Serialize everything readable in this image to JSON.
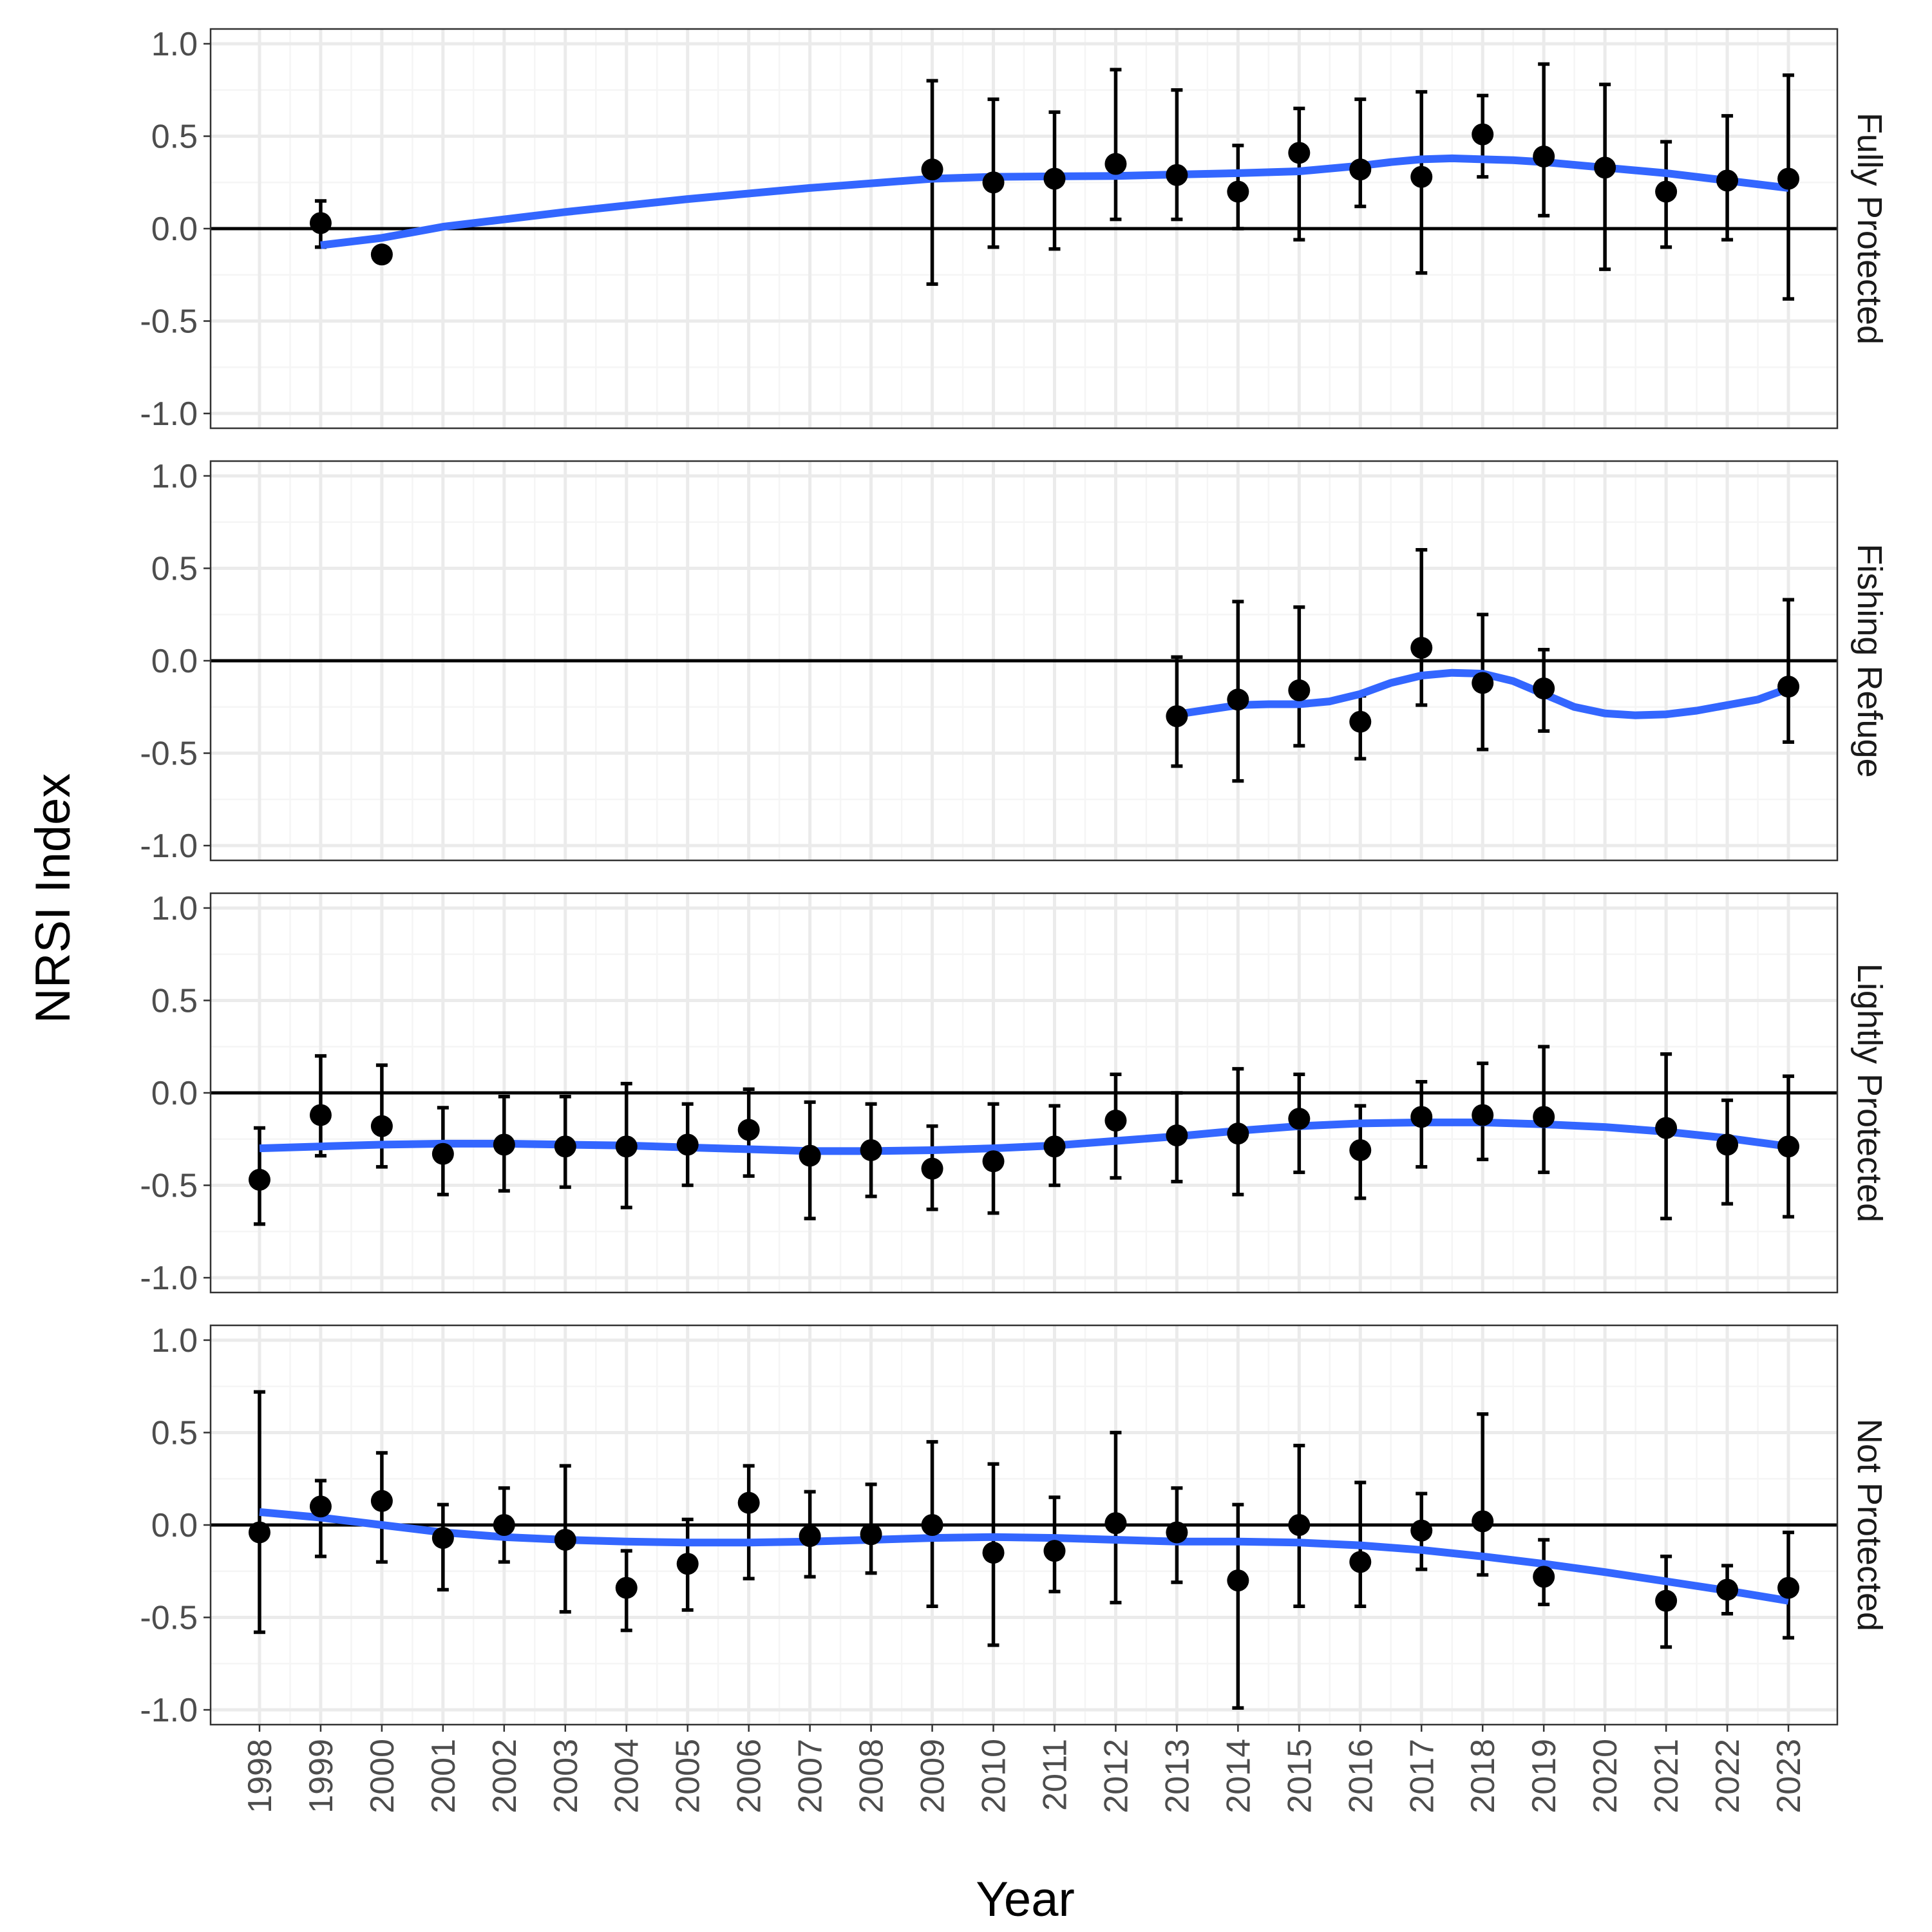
{
  "chart_data": {
    "type": "scatter",
    "xlabel": "Year",
    "ylabel": "NRSI Index",
    "ylim": [
      -1.08,
      1.08
    ],
    "y_ticks": [
      "-1.0",
      "-0.5",
      "0.0",
      "0.5",
      "1.0"
    ],
    "y_tick_values": [
      -1.0,
      -0.5,
      0.0,
      0.5,
      1.0
    ],
    "x_ticks": [
      "1998",
      "1999",
      "2000",
      "2001",
      "2002",
      "2003",
      "2004",
      "2005",
      "2006",
      "2007",
      "2008",
      "2009",
      "2010",
      "2011",
      "2012",
      "2013",
      "2014",
      "2015",
      "2016",
      "2017",
      "2018",
      "2019",
      "2020",
      "2021",
      "2022",
      "2023"
    ],
    "grid": true,
    "reference_line": 0,
    "colors": {
      "points": "#000000",
      "smooth": "#3366FF",
      "grid_major": "#EBEBEB",
      "grid_minor": "#F5F5F5",
      "panel_border": "#333333"
    },
    "panels": [
      {
        "label": "Fully Protected",
        "points": [
          {
            "x": 1999,
            "y": 0.03,
            "lo": -0.1,
            "hi": 0.15
          },
          {
            "x": 2000,
            "y": -0.14
          },
          {
            "x": 2009,
            "y": 0.32,
            "lo": -0.3,
            "hi": 0.8
          },
          {
            "x": 2010,
            "y": 0.25,
            "lo": -0.1,
            "hi": 0.7
          },
          {
            "x": 2011,
            "y": 0.27,
            "lo": -0.11,
            "hi": 0.63
          },
          {
            "x": 2012,
            "y": 0.35,
            "lo": 0.05,
            "hi": 0.86
          },
          {
            "x": 2013,
            "y": 0.29,
            "lo": 0.05,
            "hi": 0.75
          },
          {
            "x": 2014,
            "y": 0.2,
            "lo": 0.0,
            "hi": 0.45
          },
          {
            "x": 2015,
            "y": 0.41,
            "lo": -0.06,
            "hi": 0.65
          },
          {
            "x": 2016,
            "y": 0.32,
            "lo": 0.12,
            "hi": 0.7
          },
          {
            "x": 2017,
            "y": 0.28,
            "lo": -0.24,
            "hi": 0.74
          },
          {
            "x": 2018,
            "y": 0.51,
            "lo": 0.28,
            "hi": 0.72
          },
          {
            "x": 2019,
            "y": 0.39,
            "lo": 0.07,
            "hi": 0.89
          },
          {
            "x": 2020,
            "y": 0.33,
            "lo": -0.22,
            "hi": 0.78
          },
          {
            "x": 2021,
            "y": 0.2,
            "lo": -0.1,
            "hi": 0.47
          },
          {
            "x": 2022,
            "y": 0.26,
            "lo": -0.06,
            "hi": 0.61
          },
          {
            "x": 2023,
            "y": 0.27,
            "lo": -0.38,
            "hi": 0.83
          }
        ],
        "smooth": [
          [
            1999.0,
            -0.09
          ],
          [
            2000.0,
            -0.05
          ],
          [
            2001.0,
            0.01
          ],
          [
            2003.0,
            0.09
          ],
          [
            2005.0,
            0.16
          ],
          [
            2007.0,
            0.22
          ],
          [
            2009.0,
            0.27
          ],
          [
            2010.0,
            0.28
          ],
          [
            2012.0,
            0.285
          ],
          [
            2014.0,
            0.3
          ],
          [
            2015.0,
            0.31
          ],
          [
            2016.0,
            0.34
          ],
          [
            2016.5,
            0.36
          ],
          [
            2017.0,
            0.375
          ],
          [
            2017.5,
            0.38
          ],
          [
            2018.0,
            0.375
          ],
          [
            2018.5,
            0.37
          ],
          [
            2019.0,
            0.36
          ],
          [
            2020.0,
            0.33
          ],
          [
            2021.0,
            0.3
          ],
          [
            2022.0,
            0.26
          ],
          [
            2023.0,
            0.22
          ]
        ]
      },
      {
        "label": "Fishing Refuge",
        "points": [
          {
            "x": 2013,
            "y": -0.3,
            "lo": -0.57,
            "hi": 0.02
          },
          {
            "x": 2014,
            "y": -0.21,
            "lo": -0.65,
            "hi": 0.32
          },
          {
            "x": 2015,
            "y": -0.16,
            "lo": -0.46,
            "hi": 0.29
          },
          {
            "x": 2016,
            "y": -0.33,
            "lo": -0.53,
            "hi": -0.19
          },
          {
            "x": 2017,
            "y": 0.07,
            "lo": -0.24,
            "hi": 0.6
          },
          {
            "x": 2018,
            "y": -0.12,
            "lo": -0.48,
            "hi": 0.25
          },
          {
            "x": 2019,
            "y": -0.15,
            "lo": -0.38,
            "hi": 0.06
          },
          {
            "x": 2023,
            "y": -0.14,
            "lo": -0.44,
            "hi": 0.33
          }
        ],
        "smooth": [
          [
            2013.0,
            -0.29
          ],
          [
            2013.5,
            -0.265
          ],
          [
            2014.0,
            -0.24
          ],
          [
            2014.5,
            -0.235
          ],
          [
            2015.0,
            -0.235
          ],
          [
            2015.5,
            -0.22
          ],
          [
            2016.0,
            -0.18
          ],
          [
            2016.5,
            -0.12
          ],
          [
            2017.0,
            -0.08
          ],
          [
            2017.5,
            -0.065
          ],
          [
            2018.0,
            -0.07
          ],
          [
            2018.5,
            -0.11
          ],
          [
            2019.0,
            -0.18
          ],
          [
            2019.5,
            -0.25
          ],
          [
            2020.0,
            -0.285
          ],
          [
            2020.5,
            -0.295
          ],
          [
            2021.0,
            -0.29
          ],
          [
            2021.5,
            -0.27
          ],
          [
            2022.0,
            -0.24
          ],
          [
            2022.5,
            -0.21
          ],
          [
            2023.0,
            -0.15
          ]
        ]
      },
      {
        "label": "Lightly Protected",
        "points": [
          {
            "x": 1998,
            "y": -0.47,
            "lo": -0.71,
            "hi": -0.19
          },
          {
            "x": 1999,
            "y": -0.12,
            "lo": -0.34,
            "hi": 0.2
          },
          {
            "x": 2000,
            "y": -0.18,
            "lo": -0.4,
            "hi": 0.15
          },
          {
            "x": 2001,
            "y": -0.33,
            "lo": -0.55,
            "hi": -0.08
          },
          {
            "x": 2002,
            "y": -0.28,
            "lo": -0.53,
            "hi": -0.02
          },
          {
            "x": 2003,
            "y": -0.29,
            "lo": -0.51,
            "hi": -0.02
          },
          {
            "x": 2004,
            "y": -0.29,
            "lo": -0.62,
            "hi": 0.05
          },
          {
            "x": 2005,
            "y": -0.28,
            "lo": -0.5,
            "hi": -0.06
          },
          {
            "x": 2006,
            "y": -0.2,
            "lo": -0.45,
            "hi": 0.02
          },
          {
            "x": 2007,
            "y": -0.34,
            "lo": -0.68,
            "hi": -0.05
          },
          {
            "x": 2008,
            "y": -0.31,
            "lo": -0.56,
            "hi": -0.06
          },
          {
            "x": 2009,
            "y": -0.41,
            "lo": -0.63,
            "hi": -0.18
          },
          {
            "x": 2010,
            "y": -0.37,
            "lo": -0.65,
            "hi": -0.06
          },
          {
            "x": 2011,
            "y": -0.29,
            "lo": -0.5,
            "hi": -0.07
          },
          {
            "x": 2012,
            "y": -0.15,
            "lo": -0.46,
            "hi": 0.1
          },
          {
            "x": 2013,
            "y": -0.23,
            "lo": -0.48,
            "hi": 0.0
          },
          {
            "x": 2014,
            "y": -0.22,
            "lo": -0.55,
            "hi": 0.13
          },
          {
            "x": 2015,
            "y": -0.14,
            "lo": -0.43,
            "hi": 0.1
          },
          {
            "x": 2016,
            "y": -0.31,
            "lo": -0.57,
            "hi": -0.07
          },
          {
            "x": 2017,
            "y": -0.13,
            "lo": -0.4,
            "hi": 0.06
          },
          {
            "x": 2018,
            "y": -0.12,
            "lo": -0.36,
            "hi": 0.16
          },
          {
            "x": 2019,
            "y": -0.13,
            "lo": -0.43,
            "hi": 0.25
          },
          {
            "x": 2021,
            "y": -0.19,
            "lo": -0.68,
            "hi": 0.21
          },
          {
            "x": 2022,
            "y": -0.28,
            "lo": -0.6,
            "hi": -0.04
          },
          {
            "x": 2023,
            "y": -0.29,
            "lo": -0.67,
            "hi": 0.09
          }
        ],
        "smooth": [
          [
            1998.0,
            -0.3
          ],
          [
            1999.0,
            -0.29
          ],
          [
            2000.0,
            -0.28
          ],
          [
            2001.0,
            -0.275
          ],
          [
            2002.0,
            -0.275
          ],
          [
            2003.0,
            -0.28
          ],
          [
            2004.0,
            -0.285
          ],
          [
            2005.0,
            -0.295
          ],
          [
            2006.0,
            -0.305
          ],
          [
            2007.0,
            -0.315
          ],
          [
            2008.0,
            -0.315
          ],
          [
            2009.0,
            -0.31
          ],
          [
            2010.0,
            -0.3
          ],
          [
            2011.0,
            -0.285
          ],
          [
            2012.0,
            -0.26
          ],
          [
            2013.0,
            -0.235
          ],
          [
            2014.0,
            -0.205
          ],
          [
            2015.0,
            -0.18
          ],
          [
            2016.0,
            -0.165
          ],
          [
            2017.0,
            -0.16
          ],
          [
            2018.0,
            -0.16
          ],
          [
            2019.0,
            -0.17
          ],
          [
            2020.0,
            -0.185
          ],
          [
            2021.0,
            -0.21
          ],
          [
            2022.0,
            -0.245
          ],
          [
            2023.0,
            -0.29
          ]
        ]
      },
      {
        "label": "Not Protected",
        "points": [
          {
            "x": 1998,
            "y": -0.04,
            "lo": -0.58,
            "hi": 0.72
          },
          {
            "x": 1999,
            "y": 0.1,
            "lo": -0.17,
            "hi": 0.24
          },
          {
            "x": 2000,
            "y": 0.13,
            "lo": -0.2,
            "hi": 0.39
          },
          {
            "x": 2001,
            "y": -0.07,
            "lo": -0.35,
            "hi": 0.11
          },
          {
            "x": 2002,
            "y": 0.0,
            "lo": -0.2,
            "hi": 0.2
          },
          {
            "x": 2003,
            "y": -0.08,
            "lo": -0.47,
            "hi": 0.32
          },
          {
            "x": 2004,
            "y": -0.34,
            "lo": -0.57,
            "hi": -0.14
          },
          {
            "x": 2005,
            "y": -0.21,
            "lo": -0.46,
            "hi": 0.03
          },
          {
            "x": 2006,
            "y": 0.12,
            "lo": -0.29,
            "hi": 0.32
          },
          {
            "x": 2007,
            "y": -0.06,
            "lo": -0.28,
            "hi": 0.18
          },
          {
            "x": 2008,
            "y": -0.05,
            "lo": -0.26,
            "hi": 0.22
          },
          {
            "x": 2009,
            "y": 0.0,
            "lo": -0.44,
            "hi": 0.45
          },
          {
            "x": 2010,
            "y": -0.15,
            "lo": -0.65,
            "hi": 0.33
          },
          {
            "x": 2011,
            "y": -0.14,
            "lo": -0.36,
            "hi": 0.15
          },
          {
            "x": 2012,
            "y": 0.01,
            "lo": -0.42,
            "hi": 0.5
          },
          {
            "x": 2013,
            "y": -0.04,
            "lo": -0.31,
            "hi": 0.2
          },
          {
            "x": 2014,
            "y": -0.3,
            "lo": -0.99,
            "hi": 0.11
          },
          {
            "x": 2015,
            "y": 0.0,
            "lo": -0.44,
            "hi": 0.43
          },
          {
            "x": 2016,
            "y": -0.2,
            "lo": -0.44,
            "hi": 0.23
          },
          {
            "x": 2017,
            "y": -0.03,
            "lo": -0.24,
            "hi": 0.17
          },
          {
            "x": 2018,
            "y": 0.02,
            "lo": -0.27,
            "hi": 0.6
          },
          {
            "x": 2019,
            "y": -0.28,
            "lo": -0.43,
            "hi": -0.08
          },
          {
            "x": 2021,
            "y": -0.41,
            "lo": -0.66,
            "hi": -0.17
          },
          {
            "x": 2022,
            "y": -0.35,
            "lo": -0.48,
            "hi": -0.22
          },
          {
            "x": 2023,
            "y": -0.34,
            "lo": -0.61,
            "hi": -0.04
          }
        ],
        "smooth": [
          [
            1998.0,
            0.07
          ],
          [
            1999.0,
            0.04
          ],
          [
            2000.0,
            0.0
          ],
          [
            2001.0,
            -0.04
          ],
          [
            2002.0,
            -0.065
          ],
          [
            2003.0,
            -0.08
          ],
          [
            2004.0,
            -0.09
          ],
          [
            2005.0,
            -0.095
          ],
          [
            2006.0,
            -0.095
          ],
          [
            2007.0,
            -0.09
          ],
          [
            2008.0,
            -0.08
          ],
          [
            2009.0,
            -0.07
          ],
          [
            2010.0,
            -0.065
          ],
          [
            2011.0,
            -0.07
          ],
          [
            2012.0,
            -0.08
          ],
          [
            2013.0,
            -0.09
          ],
          [
            2014.0,
            -0.09
          ],
          [
            2015.0,
            -0.095
          ],
          [
            2016.0,
            -0.11
          ],
          [
            2017.0,
            -0.135
          ],
          [
            2018.0,
            -0.17
          ],
          [
            2019.0,
            -0.21
          ],
          [
            2020.0,
            -0.255
          ],
          [
            2021.0,
            -0.305
          ],
          [
            2022.0,
            -0.355
          ],
          [
            2023.0,
            -0.41
          ]
        ]
      }
    ]
  }
}
